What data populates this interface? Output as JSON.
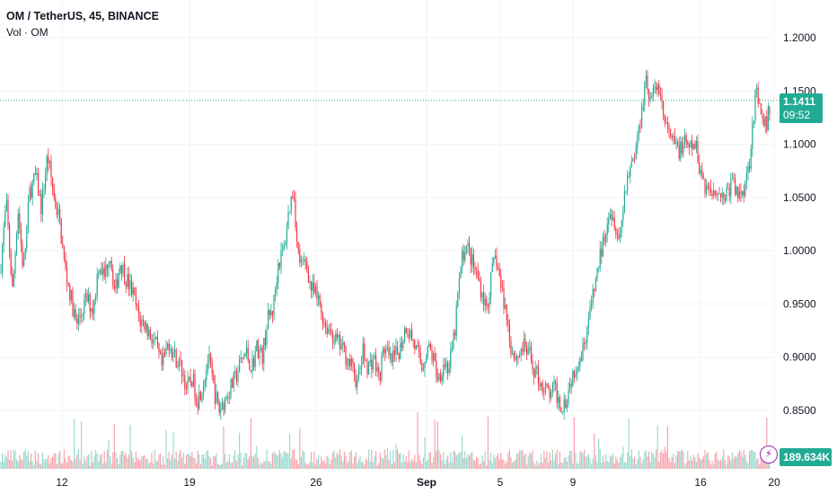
{
  "header": {
    "symbol_line": "OM / TetherUS, 45, BINANCE",
    "volume_line": "Vol · OM"
  },
  "price_tag": {
    "price": "1.1411",
    "countdown": "09:52"
  },
  "volume_tag": {
    "value": "189.634K"
  },
  "colors": {
    "up": "#22ab94",
    "down": "#f23645",
    "grid": "#f0f3fa",
    "text": "#131722"
  },
  "icons": [
    "lightning-icon"
  ],
  "chart_data": {
    "type": "candlestick",
    "y_axis": {
      "ticks": [
        "1.2000",
        "1.1500",
        "1.1000",
        "1.0500",
        "1.0000",
        "0.9500",
        "0.9000",
        "0.8500"
      ],
      "ylim": [
        0.827,
        1.215
      ]
    },
    "x_axis": {
      "ticks": [
        "12",
        "19",
        "26",
        "Sep",
        "5",
        "9",
        "16",
        "20"
      ]
    },
    "last_price": 1.1411,
    "series": [
      {
        "name": "price",
        "path": [
          [
            0,
            0.98
          ],
          [
            7,
            1.045
          ],
          [
            14,
            0.96
          ],
          [
            20,
            1.04
          ],
          [
            26,
            0.98
          ],
          [
            33,
            1.055
          ],
          [
            40,
            1.07
          ],
          [
            46,
            1.04
          ],
          [
            53,
            1.09
          ],
          [
            60,
            1.05
          ],
          [
            66,
            1.03
          ],
          [
            72,
            0.985
          ],
          [
            78,
            0.96
          ],
          [
            85,
            0.93
          ],
          [
            90,
            0.94
          ],
          [
            96,
            0.955
          ],
          [
            104,
            0.945
          ],
          [
            110,
            0.99
          ],
          [
            116,
            0.975
          ],
          [
            122,
            1.0
          ],
          [
            128,
            0.96
          ],
          [
            134,
            0.99
          ],
          [
            140,
            0.975
          ],
          [
            148,
            0.96
          ],
          [
            155,
            0.935
          ],
          [
            162,
            0.93
          ],
          [
            168,
            0.92
          ],
          [
            174,
            0.91
          ],
          [
            180,
            0.89
          ],
          [
            188,
            0.915
          ],
          [
            195,
            0.9
          ],
          [
            202,
            0.89
          ],
          [
            208,
            0.87
          ],
          [
            214,
            0.88
          ],
          [
            220,
            0.86
          ],
          [
            226,
            0.875
          ],
          [
            232,
            0.9
          ],
          [
            238,
            0.87
          ],
          [
            244,
            0.85
          ],
          [
            250,
            0.86
          ],
          [
            256,
            0.87
          ],
          [
            262,
            0.88
          ],
          [
            268,
            0.895
          ],
          [
            274,
            0.905
          ],
          [
            280,
            0.89
          ],
          [
            286,
            0.91
          ],
          [
            292,
            0.9
          ],
          [
            298,
            0.935
          ],
          [
            304,
            0.945
          ],
          [
            310,
            0.99
          ],
          [
            316,
            1.0
          ],
          [
            322,
            1.04
          ],
          [
            327,
            1.06
          ],
          [
            331,
            1.0
          ],
          [
            336,
            0.985
          ],
          [
            341,
            0.99
          ],
          [
            346,
            0.965
          ],
          [
            350,
            0.96
          ],
          [
            356,
            0.95
          ],
          [
            362,
            0.93
          ],
          [
            368,
            0.925
          ],
          [
            374,
            0.915
          ],
          [
            380,
            0.91
          ],
          [
            386,
            0.9
          ],
          [
            392,
            0.89
          ],
          [
            398,
            0.875
          ],
          [
            404,
            0.905
          ],
          [
            410,
            0.89
          ],
          [
            416,
            0.9
          ],
          [
            422,
            0.88
          ],
          [
            428,
            0.91
          ],
          [
            434,
            0.895
          ],
          [
            440,
            0.9
          ],
          [
            446,
            0.91
          ],
          [
            452,
            0.93
          ],
          [
            458,
            0.92
          ],
          [
            464,
            0.905
          ],
          [
            470,
            0.89
          ],
          [
            476,
            0.91
          ],
          [
            482,
            0.9
          ],
          [
            488,
            0.88
          ],
          [
            494,
            0.895
          ],
          [
            500,
            0.89
          ],
          [
            506,
            0.92
          ],
          [
            510,
            0.96
          ],
          [
            514,
            0.99
          ],
          [
            518,
            1.005
          ],
          [
            522,
            1.0
          ],
          [
            527,
            0.985
          ],
          [
            532,
            0.975
          ],
          [
            537,
            0.96
          ],
          [
            542,
            0.945
          ],
          [
            547,
            0.975
          ],
          [
            552,
            0.995
          ],
          [
            558,
            0.965
          ],
          [
            564,
            0.94
          ],
          [
            570,
            0.905
          ],
          [
            576,
            0.9
          ],
          [
            582,
            0.91
          ],
          [
            588,
            0.905
          ],
          [
            594,
            0.89
          ],
          [
            600,
            0.88
          ],
          [
            606,
            0.87
          ],
          [
            612,
            0.865
          ],
          [
            618,
            0.87
          ],
          [
            624,
            0.855
          ],
          [
            630,
            0.86
          ],
          [
            636,
            0.88
          ],
          [
            642,
            0.895
          ],
          [
            648,
            0.905
          ],
          [
            654,
            0.93
          ],
          [
            660,
            0.955
          ],
          [
            666,
            0.985
          ],
          [
            672,
            1.01
          ],
          [
            678,
            1.04
          ],
          [
            684,
            1.03
          ],
          [
            690,
            1.01
          ],
          [
            696,
            1.06
          ],
          [
            702,
            1.08
          ],
          [
            708,
            1.095
          ],
          [
            714,
            1.13
          ],
          [
            719,
            1.165
          ],
          [
            724,
            1.14
          ],
          [
            729,
            1.15
          ],
          [
            734,
            1.155
          ],
          [
            739,
            1.125
          ],
          [
            744,
            1.11
          ],
          [
            750,
            1.1
          ],
          [
            756,
            1.095
          ],
          [
            762,
            1.1
          ],
          [
            768,
            1.095
          ],
          [
            774,
            1.1
          ],
          [
            780,
            1.075
          ],
          [
            786,
            1.06
          ],
          [
            792,
            1.055
          ],
          [
            798,
            1.06
          ],
          [
            804,
            1.05
          ],
          [
            810,
            1.055
          ],
          [
            816,
            1.065
          ],
          [
            822,
            1.05
          ],
          [
            828,
            1.06
          ],
          [
            834,
            1.08
          ],
          [
            838,
            1.12
          ],
          [
            842,
            1.15
          ],
          [
            846,
            1.13
          ],
          [
            850,
            1.115
          ],
          [
            854,
            1.12
          ],
          [
            858,
            1.141
          ]
        ]
      }
    ]
  }
}
